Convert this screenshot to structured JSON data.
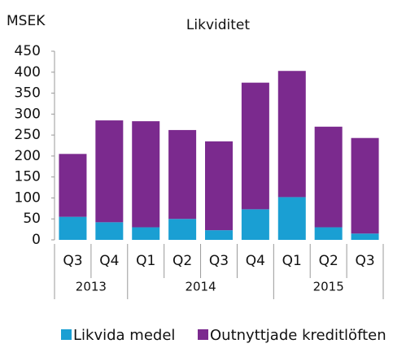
{
  "chart_data": {
    "type": "stacked_bar",
    "title": "Likviditet",
    "y_label": "MSEK",
    "categories": [
      "Q3",
      "Q4",
      "Q1",
      "Q2",
      "Q3",
      "Q4",
      "Q1",
      "Q2",
      "Q3"
    ],
    "years": [
      "2013",
      "2013",
      "2014",
      "2014",
      "2014",
      "2014",
      "2015",
      "2015",
      "2015"
    ],
    "series": [
      {
        "name": "Likvida medel",
        "color": "#1a9fd3",
        "values": [
          55,
          42,
          30,
          50,
          23,
          73,
          102,
          30,
          15
        ]
      },
      {
        "name": "Outnyttjade kreditlöften",
        "color": "#7b2a8e",
        "values": [
          150,
          243,
          253,
          212,
          212,
          302,
          301,
          240,
          228
        ]
      }
    ],
    "ylim": [
      0,
      450
    ],
    "yticks": [
      0,
      50,
      100,
      150,
      200,
      250,
      300,
      350,
      400,
      450
    ],
    "grid": false,
    "legend": "bottom"
  }
}
